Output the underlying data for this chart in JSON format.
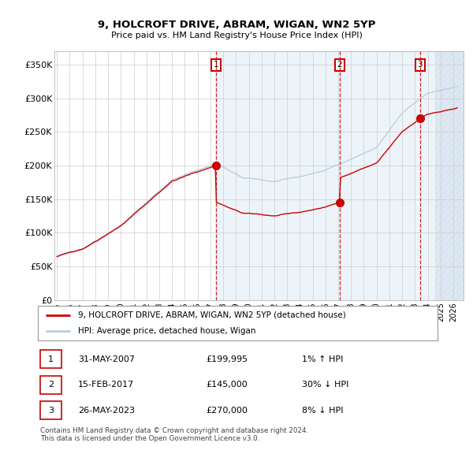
{
  "title1": "9, HOLCROFT DRIVE, ABRAM, WIGAN, WN2 5YP",
  "title2": "Price paid vs. HM Land Registry's House Price Index (HPI)",
  "ylabel_ticks": [
    "£0",
    "£50K",
    "£100K",
    "£150K",
    "£200K",
    "£250K",
    "£300K",
    "£350K"
  ],
  "ytick_values": [
    0,
    50000,
    100000,
    150000,
    200000,
    250000,
    300000,
    350000
  ],
  "ylim": [
    0,
    370000
  ],
  "xlim_start": 1994.8,
  "xlim_end": 2026.8,
  "hpi_color": "#b8cfe0",
  "price_color": "#cc0000",
  "bg_shaded": "#ddeaf5",
  "sale1_x": 2007.42,
  "sale1_y": 199995,
  "sale2_x": 2017.12,
  "sale2_y": 145000,
  "sale3_x": 2023.4,
  "sale3_y": 270000,
  "legend_label1": "9, HOLCROFT DRIVE, ABRAM, WIGAN, WN2 5YP (detached house)",
  "legend_label2": "HPI: Average price, detached house, Wigan",
  "table_rows": [
    [
      "1",
      "31-MAY-2007",
      "£199,995",
      "1% ↑ HPI"
    ],
    [
      "2",
      "15-FEB-2017",
      "£145,000",
      "30% ↓ HPI"
    ],
    [
      "3",
      "26-MAY-2023",
      "£270,000",
      "8% ↓ HPI"
    ]
  ],
  "footer": "Contains HM Land Registry data © Crown copyright and database right 2024.\nThis data is licensed under the Open Government Licence v3.0."
}
